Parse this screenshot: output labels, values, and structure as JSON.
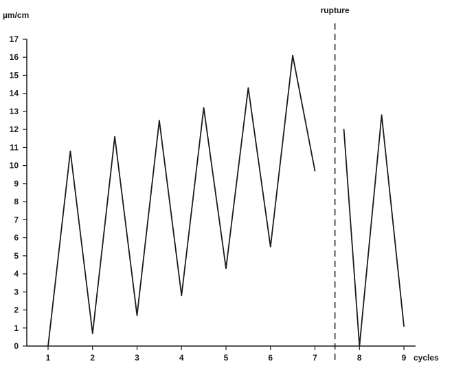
{
  "chart_data": {
    "type": "line",
    "title": "",
    "xlabel": "cycles",
    "ylabel": "µm/cm",
    "xlim": [
      1,
      9
    ],
    "ylim": [
      0,
      17
    ],
    "x_ticks": [
      1,
      2,
      3,
      4,
      5,
      6,
      7,
      8,
      9
    ],
    "y_ticks": [
      0,
      1,
      2,
      3,
      4,
      5,
      6,
      7,
      8,
      9,
      10,
      11,
      12,
      13,
      14,
      15,
      16,
      17
    ],
    "grid": false,
    "legend": "none",
    "annotations": [
      {
        "label": "rupture",
        "x": 7.45,
        "style": "dashed vertical line"
      }
    ],
    "series": [
      {
        "segments": [
          {
            "x": [
              1,
              1.5,
              2,
              2.5,
              3,
              3.5,
              4,
              4.5,
              5,
              5.5,
              6,
              6.5,
              7
            ],
            "y": [
              0,
              10.8,
              0.7,
              11.6,
              1.7,
              12.5,
              2.8,
              13.2,
              4.3,
              14.3,
              5.5,
              16.1,
              9.7
            ]
          },
          {
            "x": [
              7.65,
              8,
              8.5,
              9
            ],
            "y": [
              12.0,
              0,
              12.8,
              1.1
            ]
          }
        ]
      }
    ],
    "colors": {
      "line": "#1a1a1a",
      "axis": "#1a1a1a"
    }
  }
}
